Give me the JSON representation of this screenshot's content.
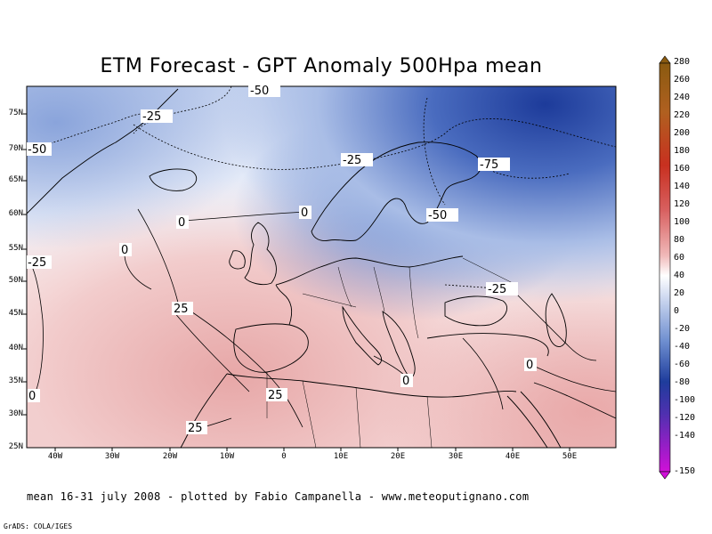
{
  "title": "ETM Forecast - GPT Anomaly 500Hpa mean",
  "footer": "mean 16-31 july 2008 - plotted by Fabio Campanella - www.meteoputignano.com",
  "credit": "GrADS: COLA/IGES",
  "lat_labels": [
    "75N",
    "70N",
    "65N",
    "60N",
    "55N",
    "50N",
    "45N",
    "40N",
    "35N",
    "30N",
    "25N"
  ],
  "lon_labels": [
    "40W",
    "30W",
    "20W",
    "10W",
    "0",
    "10E",
    "20E",
    "30E",
    "40E",
    "50E"
  ],
  "contour_labels": [
    "-50",
    "-25",
    "-50",
    "-25",
    "-75",
    "-50",
    "0",
    "0",
    "0",
    "-25",
    "25",
    "-25",
    "0",
    "0",
    "25",
    "25",
    "0"
  ],
  "colorbar_values": [
    "280",
    "260",
    "240",
    "220",
    "200",
    "180",
    "160",
    "140",
    "120",
    "100",
    "80",
    "60",
    "40",
    "20",
    "0",
    "-20",
    "-40",
    "-60",
    "-80",
    "-100",
    "-120",
    "-140",
    "-150"
  ],
  "colors": {
    "strong_negative": "#1e3c9c",
    "negative": "#6f8fd0",
    "weak_negative": "#dfe7f6",
    "neutral": "#ffffff",
    "weak_positive": "#f6dada",
    "positive": "#e9a8a8",
    "strong_positive": "#c01010",
    "extreme_positive": "#8a5a10",
    "extreme_negative": "#d010d8"
  }
}
